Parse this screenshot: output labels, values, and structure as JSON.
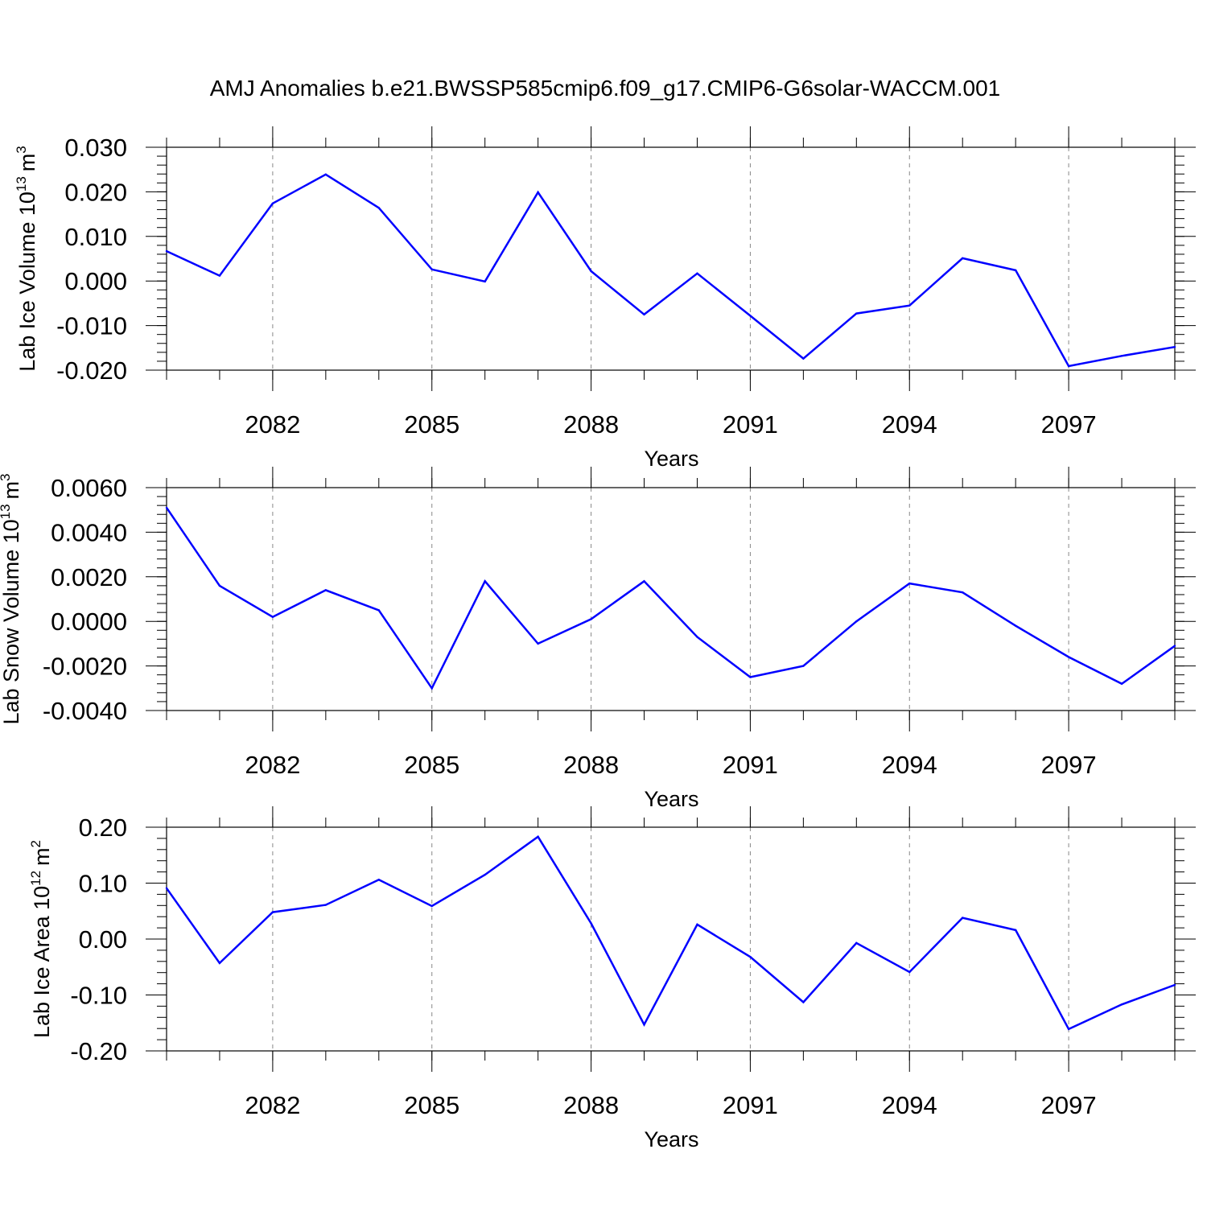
{
  "title": "AMJ Anomalies b.e21.BWSSP585cmip6.f09_g17.CMIP6-G6solar-WACCM.001",
  "colors": {
    "line": "#0000ff",
    "axis": "#000000",
    "grid": "#888888",
    "background": "#ffffff"
  },
  "chart_data": [
    {
      "type": "line",
      "ylabel_main": "Lab Ice Volume 10",
      "ylabel_exp": "13",
      "ylabel_unit": "m",
      "ylabel_unit_exp": "3",
      "xlabel": "Years",
      "xlim": [
        2080,
        2099
      ],
      "ylim": [
        -0.02,
        0.03
      ],
      "yticks": [
        -0.02,
        -0.01,
        0.0,
        0.01,
        0.02,
        0.03
      ],
      "ytick_labels": [
        "-0.020",
        "-0.010",
        "0.000",
        "0.010",
        "0.020",
        "0.030"
      ],
      "xticks": [
        2082,
        2085,
        2088,
        2091,
        2094,
        2097
      ],
      "xtick_labels": [
        "2082",
        "2085",
        "2088",
        "2091",
        "2094",
        "2097"
      ],
      "grid": "vertical-dashed",
      "series": [
        {
          "name": "Lab Ice Volume",
          "x": [
            2080,
            2081,
            2082,
            2083,
            2084,
            2085,
            2086,
            2087,
            2088,
            2089,
            2090,
            2091,
            2092,
            2093,
            2094,
            2095,
            2096,
            2097,
            2098,
            2099
          ],
          "values": [
            0.0067,
            0.0012,
            0.0174,
            0.0239,
            0.0164,
            0.0026,
            -0.0001,
            0.0199,
            0.0022,
            -0.0075,
            0.0017,
            -0.0078,
            -0.0174,
            -0.0073,
            -0.0055,
            0.0051,
            0.0024,
            -0.0191,
            -0.0168,
            -0.0148
          ]
        }
      ]
    },
    {
      "type": "line",
      "ylabel_main": "Lab Snow Volume 10",
      "ylabel_exp": "13",
      "ylabel_unit": "m",
      "ylabel_unit_exp": "3",
      "xlabel": "Years",
      "xlim": [
        2080,
        2099
      ],
      "ylim": [
        -0.004,
        0.006
      ],
      "yticks": [
        -0.004,
        -0.002,
        0.0,
        0.002,
        0.004,
        0.006
      ],
      "ytick_labels": [
        "-0.0040",
        "-0.0020",
        "0.0000",
        "0.0020",
        "0.0040",
        "0.0060"
      ],
      "xticks": [
        2082,
        2085,
        2088,
        2091,
        2094,
        2097
      ],
      "xtick_labels": [
        "2082",
        "2085",
        "2088",
        "2091",
        "2094",
        "2097"
      ],
      "grid": "vertical-dashed",
      "series": [
        {
          "name": "Lab Snow Volume",
          "x": [
            2080,
            2081,
            2082,
            2083,
            2084,
            2085,
            2086,
            2087,
            2088,
            2089,
            2090,
            2091,
            2092,
            2093,
            2094,
            2095,
            2096,
            2097,
            2098,
            2099
          ],
          "values": [
            0.0051,
            0.0016,
            0.0002,
            0.0014,
            0.0005,
            -0.003,
            0.0018,
            -0.001,
            0.0001,
            0.0018,
            -0.0007,
            -0.0025,
            -0.002,
            0.0,
            0.0017,
            0.0013,
            -0.0002,
            -0.0016,
            -0.0028,
            -0.0011
          ]
        }
      ]
    },
    {
      "type": "line",
      "ylabel_main": "Lab Ice Area 10",
      "ylabel_exp": "12",
      "ylabel_unit": "m",
      "ylabel_unit_exp": "2",
      "xlabel": "Years",
      "xlim": [
        2080,
        2099
      ],
      "ylim": [
        -0.2,
        0.2
      ],
      "yticks": [
        -0.2,
        -0.1,
        0.0,
        0.1,
        0.2
      ],
      "ytick_labels": [
        "-0.20",
        "-0.10",
        "0.00",
        "0.10",
        "0.20"
      ],
      "xticks": [
        2082,
        2085,
        2088,
        2091,
        2094,
        2097
      ],
      "xtick_labels": [
        "2082",
        "2085",
        "2088",
        "2091",
        "2094",
        "2097"
      ],
      "grid": "vertical-dashed",
      "series": [
        {
          "name": "Lab Ice Area",
          "x": [
            2080,
            2081,
            2082,
            2083,
            2084,
            2085,
            2086,
            2087,
            2088,
            2089,
            2090,
            2091,
            2092,
            2093,
            2094,
            2095,
            2096,
            2097,
            2098,
            2099
          ],
          "values": [
            0.091,
            -0.043,
            0.048,
            0.061,
            0.106,
            0.059,
            0.115,
            0.183,
            0.028,
            -0.153,
            0.026,
            -0.032,
            -0.113,
            -0.007,
            -0.059,
            0.038,
            0.016,
            -0.161,
            -0.117,
            -0.082
          ]
        }
      ]
    }
  ]
}
